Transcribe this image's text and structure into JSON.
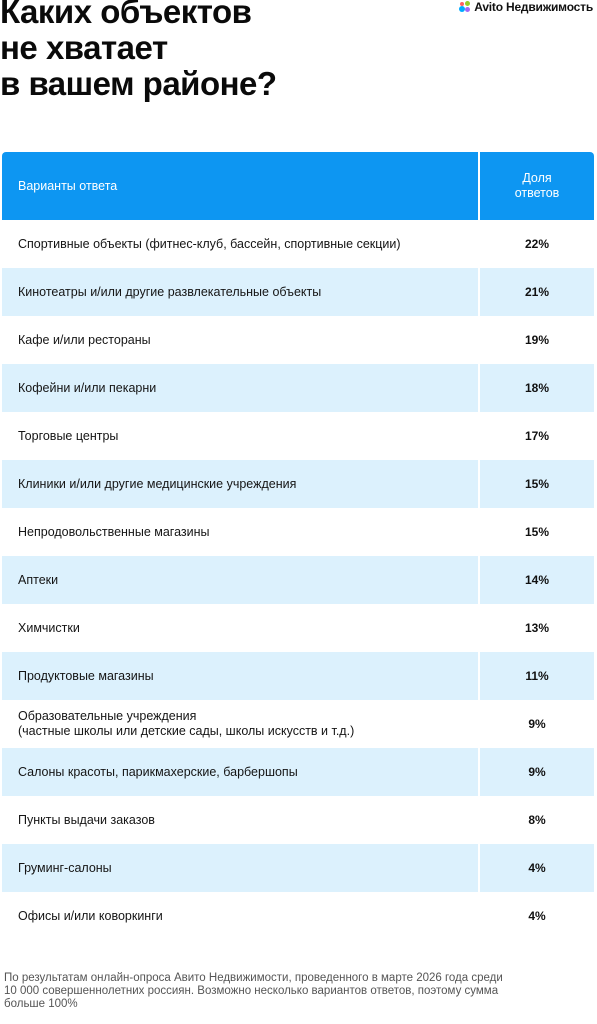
{
  "header": {
    "title": "Каких объектов\nне хватает\nв вашем районе?",
    "brand": "Avito Недвижимость"
  },
  "table": {
    "col_question": "Варианты ответа",
    "col_share": "Доля\nответов",
    "rows": [
      {
        "label": "Спортивные объекты (фитнес-клуб, бассейн, спортивные секции)",
        "value": "22%"
      },
      {
        "label": "Кинотеатры и/или другие развлекательные объекты",
        "value": "21%"
      },
      {
        "label": "Кафе и/или рестораны",
        "value": "19%"
      },
      {
        "label": "Кофейни и/или пекарни",
        "value": "18%"
      },
      {
        "label": "Торговые центры",
        "value": "17%"
      },
      {
        "label": "Клиники и/или другие медицинские учреждения",
        "value": "15%"
      },
      {
        "label": "Непродовольственные магазины",
        "value": "15%"
      },
      {
        "label": "Аптеки",
        "value": "14%"
      },
      {
        "label": "Химчистки",
        "value": "13%"
      },
      {
        "label": "Продуктовые магазины",
        "value": "11%"
      },
      {
        "label": "Образовательные учреждения\n(частные школы или детские сады, школы искусств и т.д.)",
        "value": "9%"
      },
      {
        "label": "Салоны красоты, парикмахерские, барбершопы",
        "value": "9%"
      },
      {
        "label": "Пункты выдачи заказов",
        "value": "8%"
      },
      {
        "label": "Груминг-салоны",
        "value": "4%"
      },
      {
        "label": "Офисы и/или коворкинги",
        "value": "4%"
      }
    ]
  },
  "footnote": "По результатам онлайн-опроса Авито Недвижимости, проведенного в марте 2026 года среди 10 000 совершеннолетних россиян. Возможно несколько вариантов ответов, поэтому сумма больше 100%",
  "colors": {
    "header_blue": "#0d96f2",
    "stripe": "#dcf1fd"
  }
}
